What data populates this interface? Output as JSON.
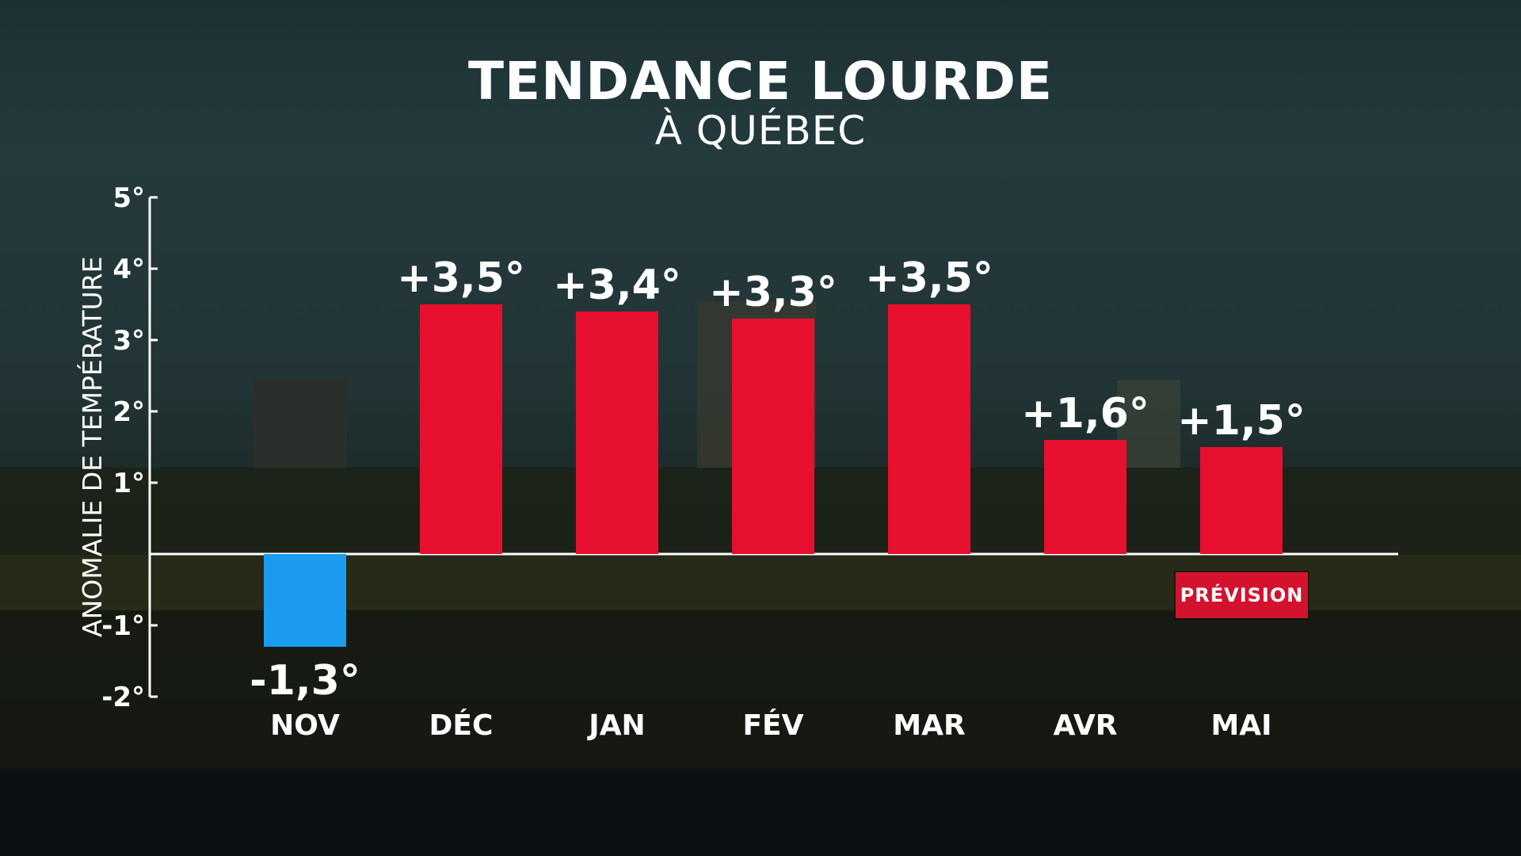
{
  "colors": {
    "positive_bar": "#e8102f",
    "negative_bar": "#1b9cf0",
    "badge": "#d4122e",
    "text": "#ffffff"
  },
  "badge": {
    "label": "PRÉVISION"
  },
  "chart_data": {
    "type": "bar",
    "title": "TENDANCE LOURDE",
    "subtitle": "À QUÉBEC",
    "xlabel": "",
    "ylabel": "ANOMALIE DE TEMPÉRATURE",
    "categories": [
      "NOV",
      "DÉC",
      "JAN",
      "FÉV",
      "MAR",
      "AVR",
      "MAI"
    ],
    "values": [
      -1.3,
      3.5,
      3.4,
      3.3,
      3.5,
      1.6,
      1.5
    ],
    "data_labels": [
      "-1,3°",
      "+3,5°",
      "+3,4°",
      "+3,3°",
      "+3,5°",
      "+1,6°",
      "+1,5°"
    ],
    "yticks": [
      5,
      4,
      3,
      2,
      1,
      -1,
      -2
    ],
    "ytick_labels": [
      "5°",
      "4°",
      "3°",
      "2°",
      "1°",
      "-1°",
      "-2°"
    ],
    "ylim": [
      -2,
      5
    ],
    "grid": false,
    "forecast_category": "MAI"
  }
}
